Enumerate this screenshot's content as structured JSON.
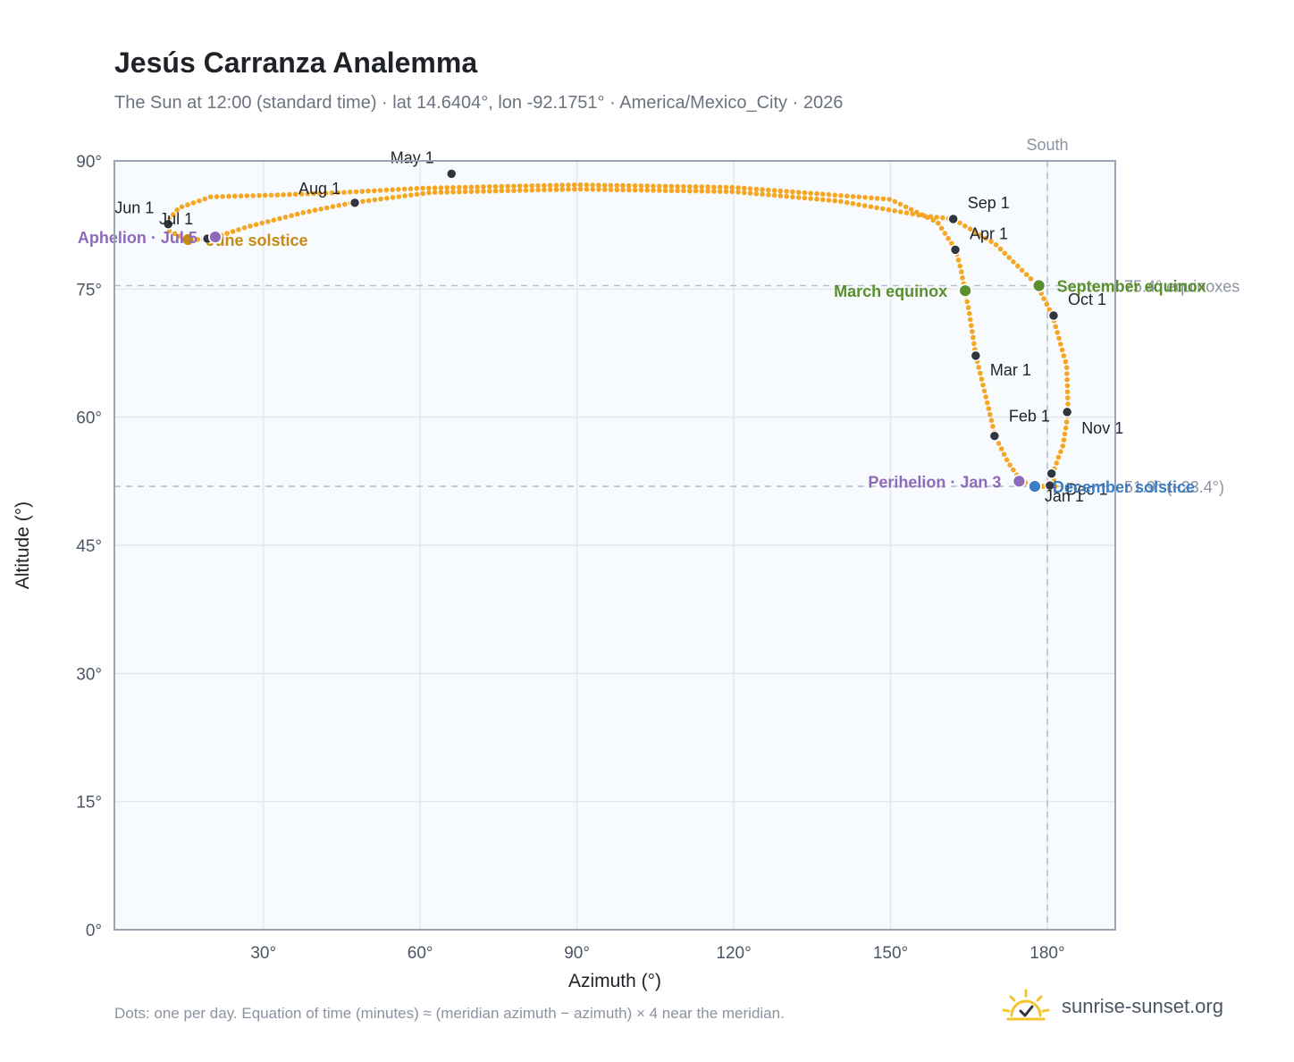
{
  "header": {
    "title": "Jesús Carranza Analemma",
    "subtitle": "The Sun at 12:00 (standard time) · lat 14.6404°, lon -92.1751° · America/Mexico_City · 2026"
  },
  "footer": {
    "note": "Dots: one per day. Equation of time (minutes) ≈ (meridian azimuth − azimuth) × 4 near the meridian.",
    "brand": "sunrise-sunset.org"
  },
  "colors": {
    "path": "#f5a623",
    "month": "#2f3640",
    "equinox": "#5a8f2e",
    "solstice_june": "#c98a12",
    "solstice_dec": "#3b7dc4",
    "apsis": "#8e6bb8",
    "frame": "#9aa4b2",
    "grid": "#e3e8ee",
    "ref": "#b8c0cc",
    "plot_bg": "#f8fbfe"
  },
  "chart_data": {
    "type": "scatter",
    "xlabel": "Azimuth (°)",
    "ylabel": "Altitude (°)",
    "xlim": [
      1.5,
      193
    ],
    "ylim": [
      0,
      90
    ],
    "xticks": [
      30,
      60,
      90,
      120,
      150,
      180
    ],
    "xtick_labels": [
      "30°",
      "60°",
      "90°",
      "120°",
      "150°",
      "180°"
    ],
    "yticks": [
      0,
      15,
      30,
      45,
      60,
      75,
      90
    ],
    "ytick_labels": [
      "0°",
      "15°",
      "30°",
      "45°",
      "60°",
      "75°",
      "90°"
    ],
    "grid": true,
    "south_line": {
      "azimuth": 180,
      "label": "South"
    },
    "reference_lines": [
      {
        "altitude": 75.4,
        "label": "75.4° equinoxes"
      },
      {
        "altitude": 51.9,
        "label": "51.9° (−23.4°)"
      }
    ],
    "path_keypoints": [
      [
        181.5,
        51.9
      ],
      [
        178.0,
        51.9
      ],
      [
        175.0,
        52.5
      ],
      [
        172.5,
        54.7
      ],
      [
        170.0,
        57.8
      ],
      [
        168.0,
        63.0
      ],
      [
        166.3,
        67.3
      ],
      [
        165.0,
        72.5
      ],
      [
        164.2,
        74.9
      ],
      [
        163.4,
        77.5
      ],
      [
        162.4,
        79.7
      ],
      [
        159.0,
        82.8
      ],
      [
        150.0,
        85.5
      ],
      [
        120.0,
        86.9
      ],
      [
        90.0,
        87.2
      ],
      [
        60.0,
        86.8
      ],
      [
        45.0,
        86.3
      ],
      [
        32.0,
        86.0
      ],
      [
        20.0,
        85.8
      ],
      [
        13.8,
        84.5
      ],
      [
        11.8,
        83.0
      ],
      [
        12.0,
        81.8
      ],
      [
        15.5,
        80.8
      ],
      [
        19.5,
        80.8
      ],
      [
        27.0,
        82.3
      ],
      [
        38.0,
        84.0
      ],
      [
        47.0,
        85.1
      ],
      [
        62.0,
        86.3
      ],
      [
        90.0,
        86.7
      ],
      [
        120.0,
        86.4
      ],
      [
        140.0,
        85.3
      ],
      [
        156.0,
        83.6
      ],
      [
        162.0,
        83.2
      ],
      [
        170.0,
        80.3
      ],
      [
        178.0,
        75.5
      ],
      [
        181.0,
        71.9
      ],
      [
        183.7,
        66.0
      ],
      [
        184.0,
        60.6
      ],
      [
        183.0,
        56.7
      ],
      [
        181.0,
        53.4
      ],
      [
        181.5,
        51.9
      ]
    ],
    "months": [
      {
        "label": "Jan 1",
        "az": 180.5,
        "alt": 52.0
      },
      {
        "label": "Feb 1",
        "az": 169.9,
        "alt": 57.8
      },
      {
        "label": "Mar 1",
        "az": 166.3,
        "alt": 67.2
      },
      {
        "label": "Apr 1",
        "az": 162.4,
        "alt": 79.6
      },
      {
        "label": "May 1",
        "az": 66.0,
        "alt": 88.5
      },
      {
        "label": "Jun 1",
        "az": 11.8,
        "alt": 82.6
      },
      {
        "label": "Jul 1",
        "az": 19.3,
        "alt": 80.9
      },
      {
        "label": "Aug 1",
        "az": 47.5,
        "alt": 85.1
      },
      {
        "label": "Sep 1",
        "az": 162.0,
        "alt": 83.2
      },
      {
        "label": "Oct 1",
        "az": 181.2,
        "alt": 71.9
      },
      {
        "label": "Nov 1",
        "az": 183.8,
        "alt": 60.6
      },
      {
        "label": "Dec 1",
        "az": 180.8,
        "alt": 53.4
      }
    ],
    "events": [
      {
        "label": "March equinox",
        "az": 164.3,
        "alt": 74.8,
        "color_key": "equinox",
        "anchor": "end"
      },
      {
        "label": "September equinox",
        "az": 178.4,
        "alt": 75.4,
        "color_key": "equinox",
        "anchor": "start"
      },
      {
        "label": "June solstice",
        "az": 15.6,
        "alt": 80.8,
        "color_key": "solstice_june",
        "anchor": "start"
      },
      {
        "label": "December solstice",
        "az": 177.6,
        "alt": 51.9,
        "color_key": "solstice_dec",
        "anchor": "start"
      },
      {
        "label": "Aphelion · Jul 5",
        "az": 20.8,
        "alt": 81.1,
        "color_key": "apsis",
        "anchor": "end"
      },
      {
        "label": "Perihelion · Jan 3",
        "az": 174.6,
        "alt": 52.5,
        "color_key": "apsis",
        "anchor": "end"
      }
    ]
  }
}
